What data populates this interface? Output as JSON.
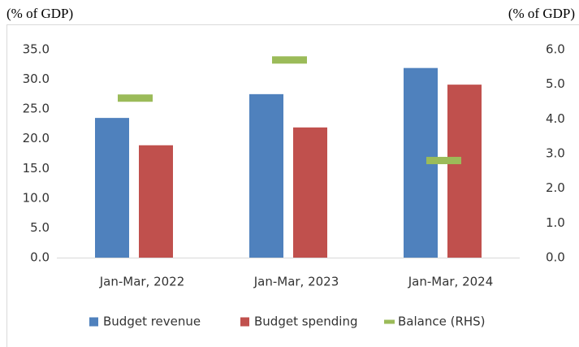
{
  "chart_data": {
    "type": "bar",
    "ylabel": "(% of GDP)",
    "y2label": "(% of GDP)",
    "categories": [
      "Jan-Mar, 2022",
      "Jan-Mar, 2023",
      "Jan-Mar, 2024"
    ],
    "series": [
      {
        "name": "Budget revenue",
        "color": "#4f81bd",
        "values": [
          23.5,
          27.5,
          31.9
        ]
      },
      {
        "name": "Budget spending",
        "color": "#c0504d",
        "values": [
          18.9,
          21.9,
          29.1
        ]
      },
      {
        "name": "Balance (RHS)",
        "color": "#9bbb59",
        "axis": "y2",
        "values": [
          4.6,
          5.7,
          2.8
        ]
      }
    ],
    "ylim": [
      0,
      35
    ],
    "yticks": [
      {
        "value": 0,
        "label": "0.0"
      },
      {
        "value": 5,
        "label": "5.0"
      },
      {
        "value": 10,
        "label": "10.0"
      },
      {
        "value": 15,
        "label": "15.0"
      },
      {
        "value": 20,
        "label": "20.0"
      },
      {
        "value": 25,
        "label": "25.0"
      },
      {
        "value": 30,
        "label": "30.0"
      },
      {
        "value": 35,
        "label": "35.0"
      }
    ],
    "y2lim": [
      0,
      6
    ],
    "y2ticks": [
      {
        "value": 0,
        "label": "0.0"
      },
      {
        "value": 1,
        "label": "1.0"
      },
      {
        "value": 2,
        "label": "2.0"
      },
      {
        "value": 3,
        "label": "3.0"
      },
      {
        "value": 4,
        "label": "4.0"
      },
      {
        "value": 5,
        "label": "5.0"
      },
      {
        "value": 6,
        "label": "6.0"
      }
    ],
    "grid": false,
    "legend": "bottom"
  }
}
